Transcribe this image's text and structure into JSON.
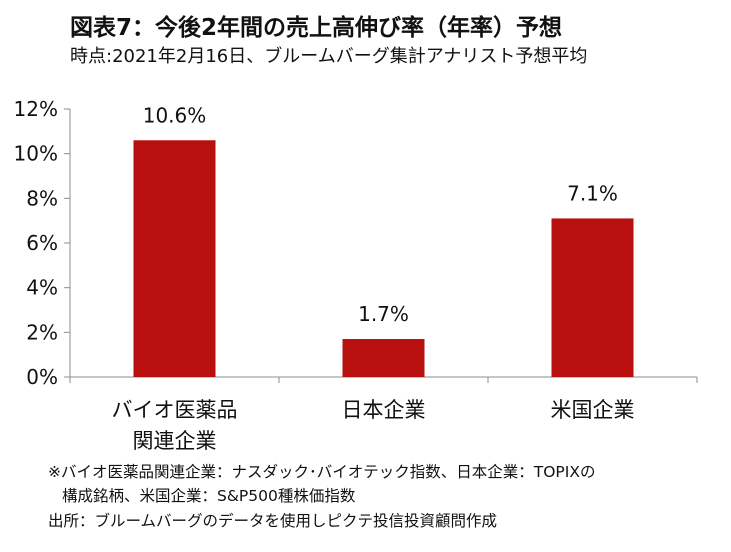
{
  "title": "図表7：今後2年間の売上高伸び率（年率）予想",
  "subtitle": "時点:2021年2月16日、ブルームバーグ集計アナリスト予想平均",
  "chart_data": {
    "type": "bar",
    "categories": [
      [
        "バイオ医薬品",
        "関連企業"
      ],
      [
        "日本企業"
      ],
      [
        "米国企業"
      ]
    ],
    "values": [
      10.6,
      1.7,
      7.1
    ],
    "value_labels": [
      "10.6%",
      "1.7%",
      "7.1%"
    ],
    "ylim": [
      0,
      12
    ],
    "yticks": [
      0,
      2,
      4,
      6,
      8,
      10,
      12
    ],
    "ytick_labels": [
      "0%",
      "2%",
      "4%",
      "6%",
      "8%",
      "10%",
      "12%"
    ],
    "bar_color": "#b80f0f",
    "grid": false,
    "legend": "none"
  },
  "notes": {
    "line1": "※バイオ医薬品関連企業：ナスダック･バイオテック指数、日本企業：TOPIXの",
    "line2": "構成銘柄、米国企業：S&P500種株価指数",
    "source": "出所：ブルームバーグのデータを使用しピクテ投信投資顧問作成"
  }
}
